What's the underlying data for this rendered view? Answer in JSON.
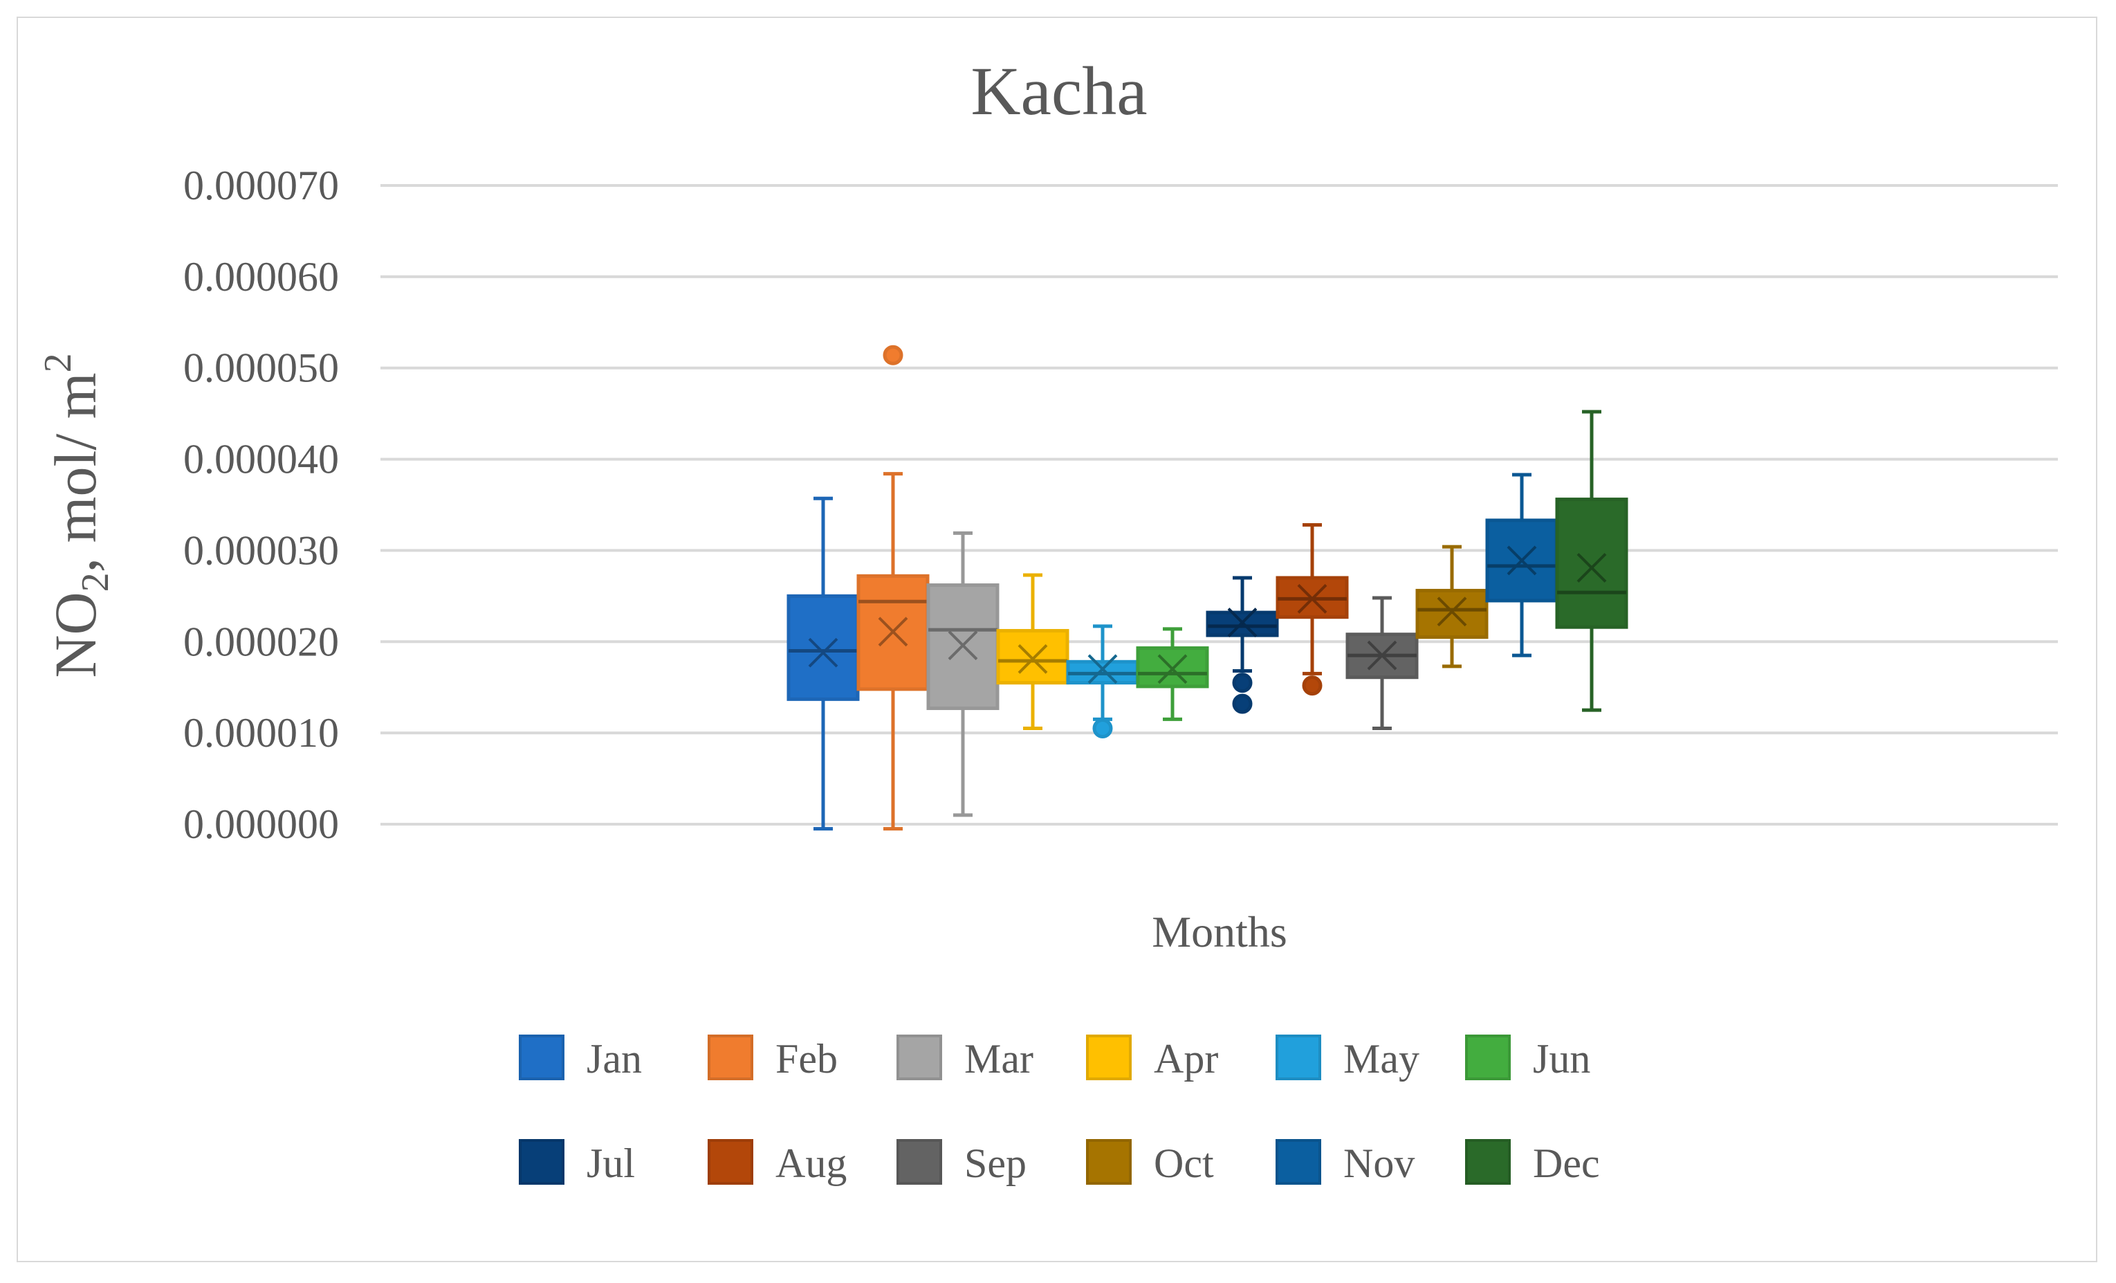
{
  "chart_data": {
    "type": "box",
    "title": "Kacha",
    "xlabel": "Months",
    "ylabel_main": "NO",
    "ylabel_sub": "2",
    "ylabel_rest": ", mol/ m",
    "ylabel_sup": "2",
    "ylim": [
      0,
      7e-05
    ],
    "yticks": [
      "0.000000",
      "0.000010",
      "0.000020",
      "0.000030",
      "0.000040",
      "0.000050",
      "0.000060",
      "0.000070"
    ],
    "ytick_values": [
      0,
      1e-05,
      2e-05,
      3e-05,
      4e-05,
      5e-05,
      6e-05,
      7e-05
    ],
    "grid": true,
    "legend_position": "bottom",
    "series": [
      {
        "name": "Jan",
        "color": "#1f6fc6",
        "min": -5e-07,
        "q1": 1.37e-05,
        "median": 1.9e-05,
        "q3": 2.5e-05,
        "max": 3.57e-05,
        "mean": 1.88e-05,
        "outliers": []
      },
      {
        "name": "Feb",
        "color": "#f07c2e",
        "min": -5e-07,
        "q1": 1.48e-05,
        "median": 2.44e-05,
        "q3": 2.72e-05,
        "max": 3.84e-05,
        "mean": 2.11e-05,
        "outliers": [
          5.14e-05
        ]
      },
      {
        "name": "Mar",
        "color": "#a5a5a5",
        "min": 1e-06,
        "q1": 1.27e-05,
        "median": 2.13e-05,
        "q3": 2.62e-05,
        "max": 3.19e-05,
        "mean": 1.96e-05,
        "outliers": []
      },
      {
        "name": "Apr",
        "color": "#ffc000",
        "min": 1.05e-05,
        "q1": 1.55e-05,
        "median": 1.79e-05,
        "q3": 2.12e-05,
        "max": 2.73e-05,
        "mean": 1.81e-05,
        "outliers": []
      },
      {
        "name": "May",
        "color": "#21a0dc",
        "min": 1.15e-05,
        "q1": 1.55e-05,
        "median": 1.65e-05,
        "q3": 1.78e-05,
        "max": 2.17e-05,
        "mean": 1.7e-05,
        "outliers": [
          1.05e-05
        ]
      },
      {
        "name": "Jun",
        "color": "#43ad3f",
        "min": 1.15e-05,
        "q1": 1.51e-05,
        "median": 1.65e-05,
        "q3": 1.93e-05,
        "max": 2.14e-05,
        "mean": 1.7e-05,
        "outliers": []
      },
      {
        "name": "Jul",
        "color": "#073f78",
        "min": 1.68e-05,
        "q1": 2.07e-05,
        "median": 2.17e-05,
        "q3": 2.32e-05,
        "max": 2.7e-05,
        "mean": 2.21e-05,
        "outliers": [
          1.55e-05,
          1.32e-05
        ]
      },
      {
        "name": "Aug",
        "color": "#b3470a",
        "min": 1.65e-05,
        "q1": 2.27e-05,
        "median": 2.47e-05,
        "q3": 2.7e-05,
        "max": 3.28e-05,
        "mean": 2.47e-05,
        "outliers": [
          1.52e-05
        ]
      },
      {
        "name": "Sep",
        "color": "#636363",
        "min": 1.05e-05,
        "q1": 1.61e-05,
        "median": 1.85e-05,
        "q3": 2.08e-05,
        "max": 2.48e-05,
        "mean": 1.85e-05,
        "outliers": []
      },
      {
        "name": "Oct",
        "color": "#a67400",
        "min": 1.73e-05,
        "q1": 2.05e-05,
        "median": 2.35e-05,
        "q3": 2.56e-05,
        "max": 3.04e-05,
        "mean": 2.33e-05,
        "outliers": []
      },
      {
        "name": "Nov",
        "color": "#0b5fa0",
        "min": 1.85e-05,
        "q1": 2.45e-05,
        "median": 2.83e-05,
        "q3": 3.33e-05,
        "max": 3.83e-05,
        "mean": 2.89e-05,
        "outliers": []
      },
      {
        "name": "Dec",
        "color": "#2a6a29",
        "min": 1.25e-05,
        "q1": 2.16e-05,
        "median": 2.54e-05,
        "q3": 3.56e-05,
        "max": 4.52e-05,
        "mean": 2.81e-05,
        "outliers": []
      }
    ]
  }
}
